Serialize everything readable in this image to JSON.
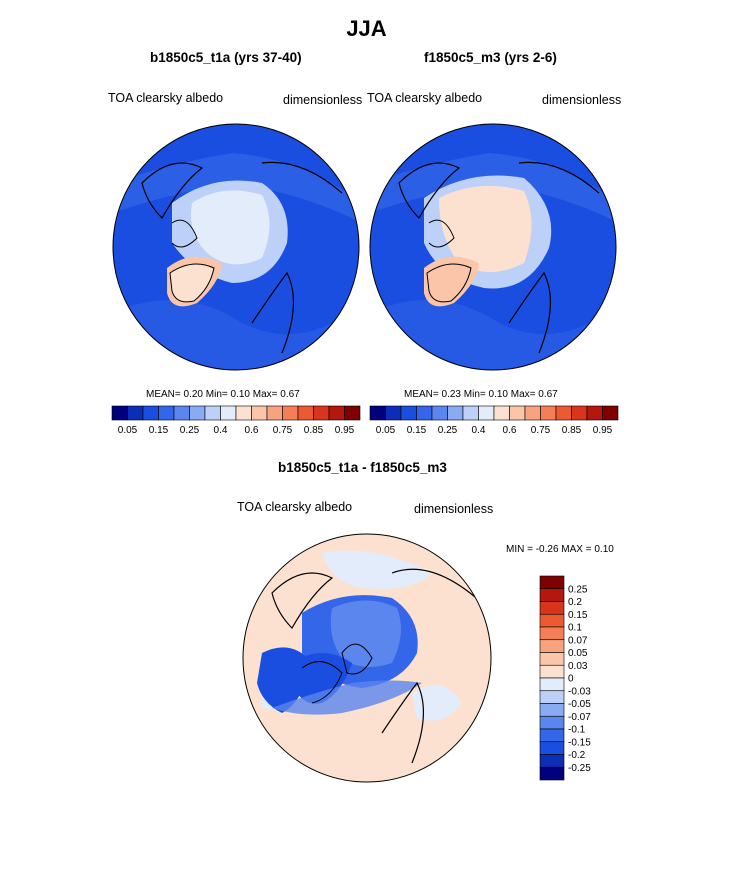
{
  "figure": {
    "title": "JJA",
    "panels": [
      {
        "title": "b1850c5_t1a (yrs 37-40)",
        "variable": "TOA clearsky albedo",
        "units": "dimensionless",
        "stats": {
          "mean_label": "MEAN=",
          "mean": "0.20",
          "min_label": "Min=",
          "min": "0.10",
          "max_label": "Max=",
          "max": "0.67"
        }
      },
      {
        "title": "f1850c5_m3 (yrs 2-6)",
        "variable": "TOA clearsky albedo",
        "units": "dimensionless",
        "stats": {
          "mean_label": "MEAN=",
          "mean": "0.23",
          "min_label": "Min=",
          "min": "0.10",
          "max_label": "Max=",
          "max": "0.67"
        }
      }
    ],
    "diff": {
      "title": "b1850c5_t1a - f1850c5_m3",
      "variable": "TOA clearsky albedo",
      "units": "dimensionless",
      "minmax": "MIN = -0.26 MAX =  0.10"
    }
  },
  "colorbars": {
    "absolute": {
      "colors": [
        "#00007f",
        "#0c2db6",
        "#1a4ee0",
        "#3366e8",
        "#5a86ee",
        "#8aaaf2",
        "#bcd0f8",
        "#e2ecfb",
        "#fde1d0",
        "#fbc5aa",
        "#f8a380",
        "#f47f56",
        "#ec5a32",
        "#d9351c",
        "#b4170e",
        "#7f0000"
      ],
      "labels": [
        "0.05",
        "0.15",
        "0.25",
        "0.4",
        "0.6",
        "0.75",
        "0.85",
        "0.95"
      ]
    },
    "difference": {
      "colors_top_to_bottom": [
        "#7f0000",
        "#b4170e",
        "#d9351c",
        "#ec5a32",
        "#f47f56",
        "#f8a380",
        "#fbc5aa",
        "#fde1d0",
        "#e2ecfb",
        "#bcd0f8",
        "#8aaaf2",
        "#5a86ee",
        "#3366e8",
        "#1a4ee0",
        "#0c2db6",
        "#00007f"
      ],
      "labels_top_to_bottom": [
        "0.25",
        "0.2",
        "0.15",
        "0.1",
        "0.07",
        "0.05",
        "0.03",
        "0",
        "-0.03",
        "-0.05",
        "-0.07",
        "-0.1",
        "-0.15",
        "-0.2",
        "-0.25"
      ]
    }
  }
}
